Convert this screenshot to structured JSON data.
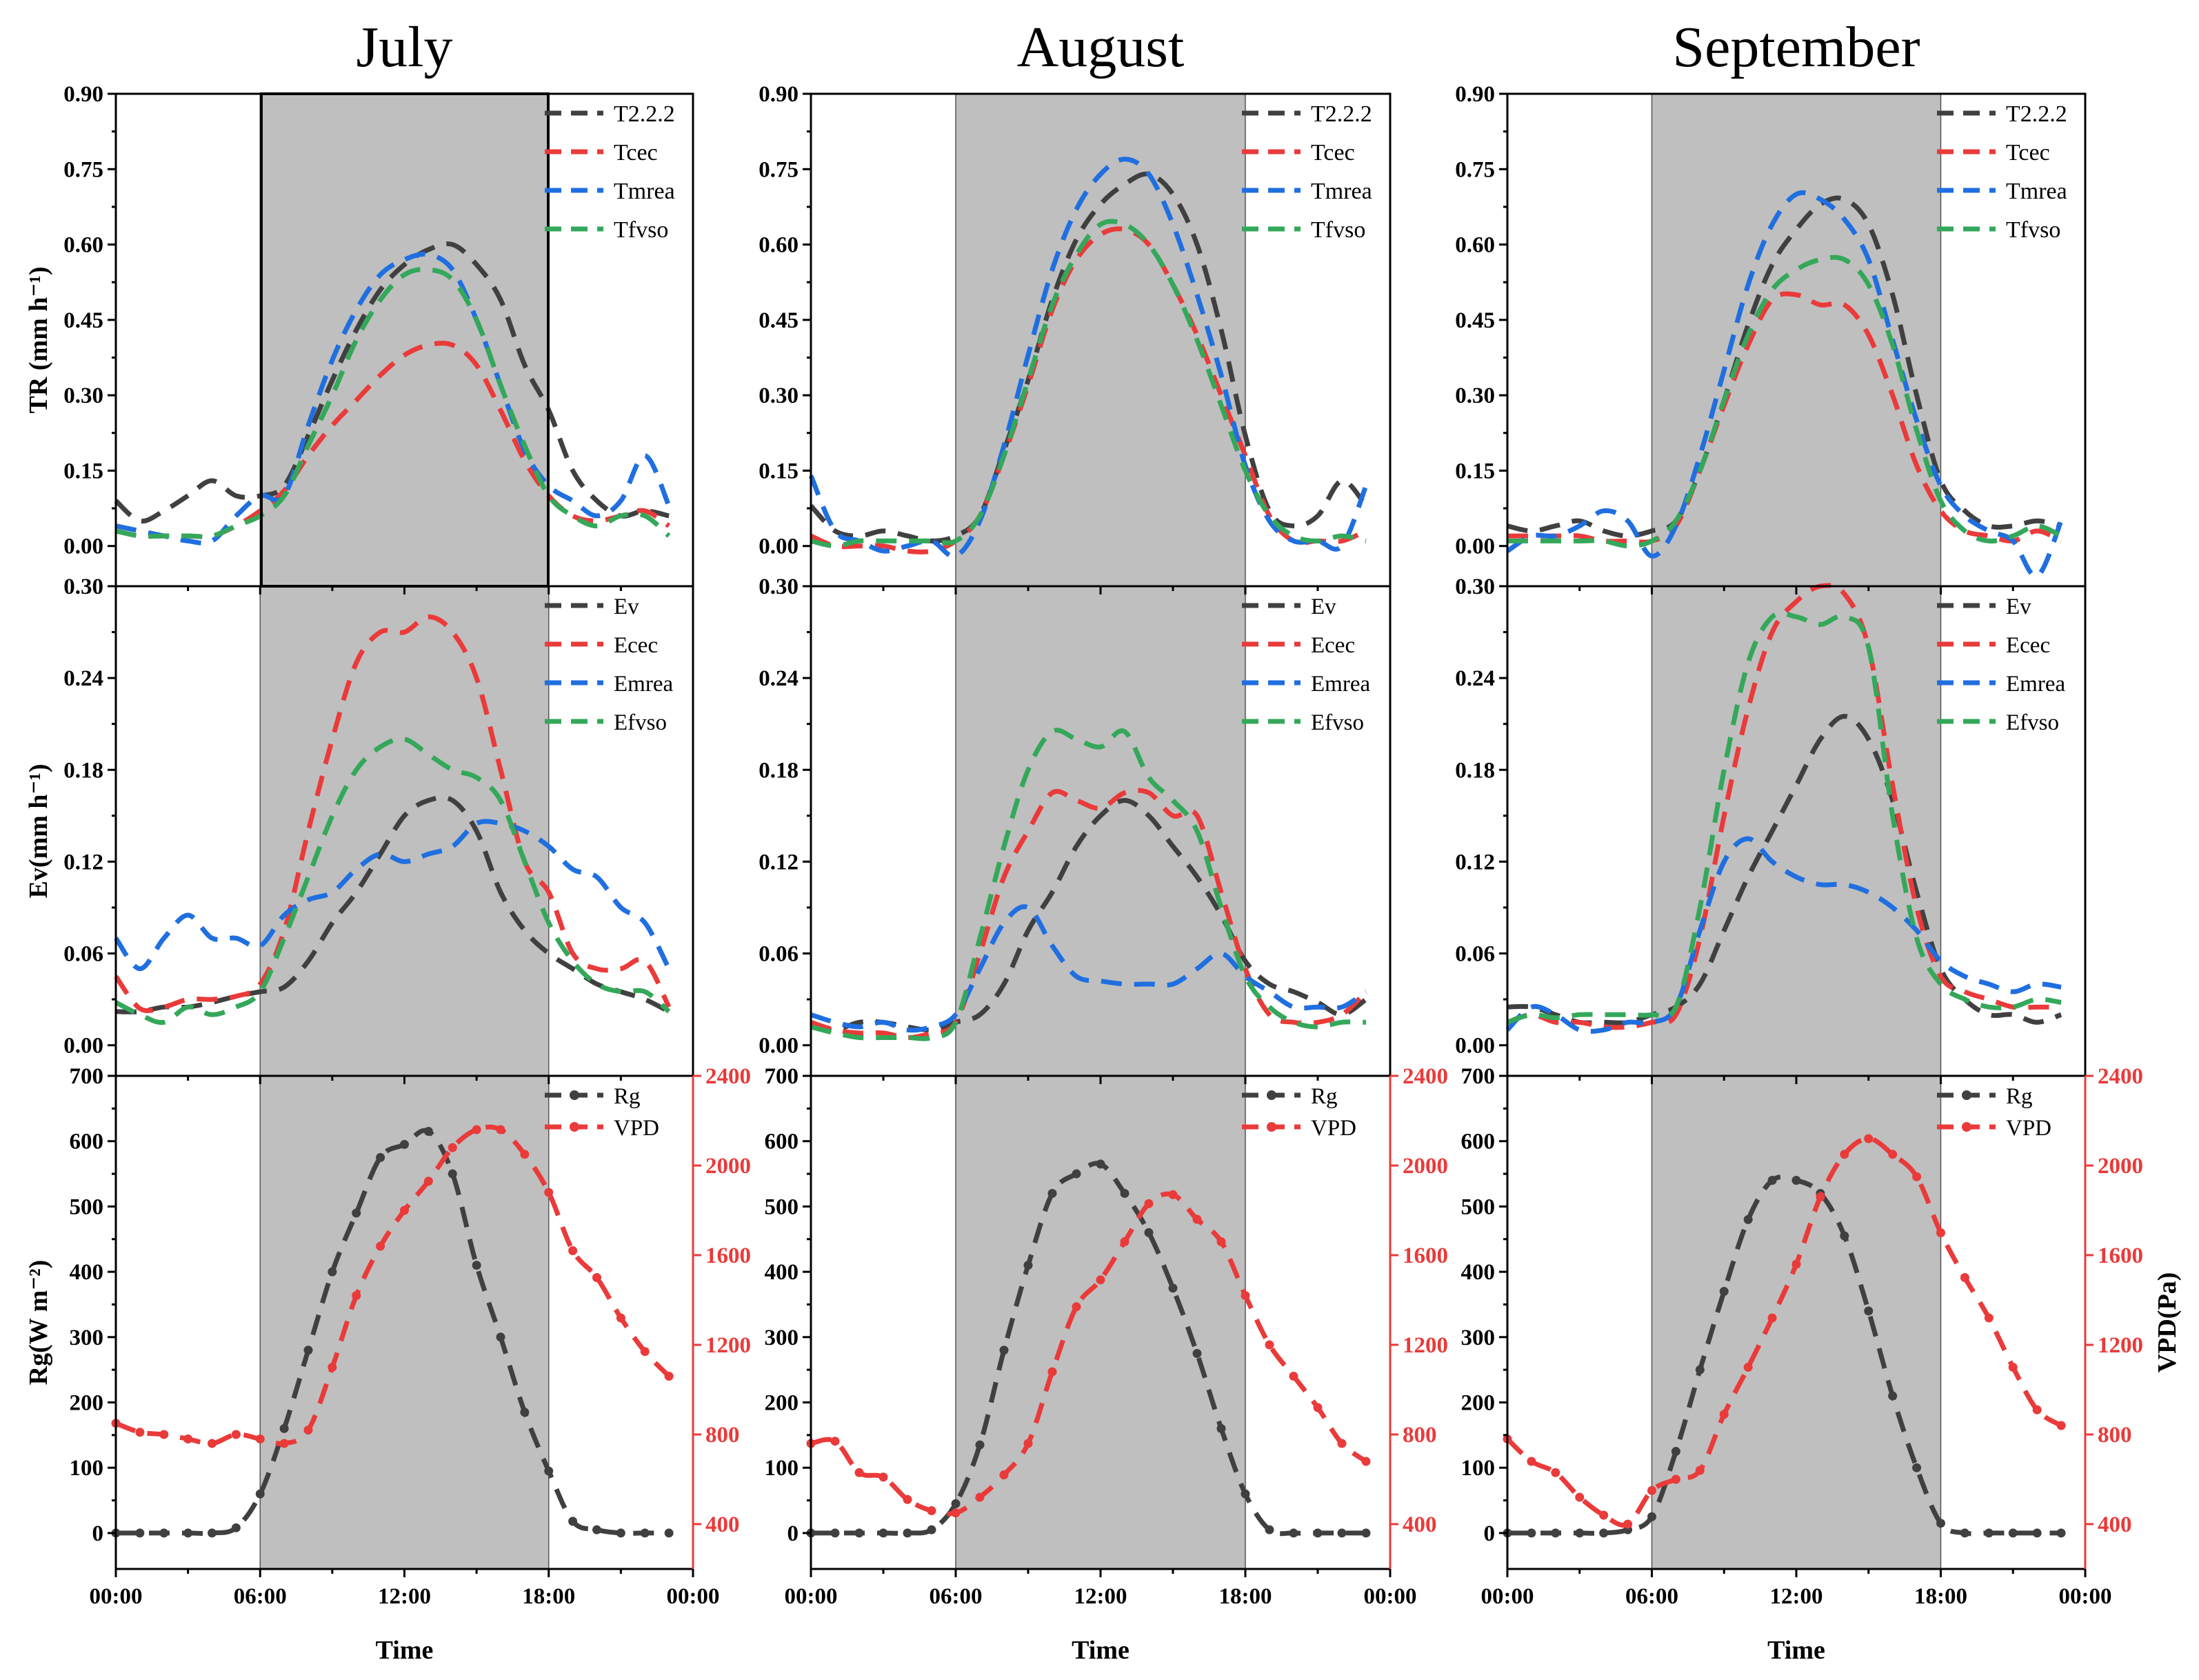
{
  "chart_data": {
    "type": "line",
    "columns": [
      "July",
      "August",
      "September"
    ],
    "xaxis": {
      "label": "Time",
      "ticks": [
        "00:00",
        "06:00",
        "12:00",
        "18:00",
        "00:00"
      ],
      "tick_hours": [
        0,
        6,
        12,
        18,
        24
      ],
      "range": [
        0,
        24
      ]
    },
    "shaded_hours": [
      6,
      18
    ],
    "rows": [
      {
        "key": "tr",
        "ylabel": "TR (mm h⁻¹)",
        "ylim": [
          -0.08,
          0.9
        ],
        "yticks": [
          0,
          0.15,
          0.3,
          0.45,
          0.6,
          0.75,
          0.9
        ],
        "yticklabels": [
          "0.00",
          "0.15",
          "0.30",
          "0.45",
          "0.60",
          "0.75",
          "0.90"
        ],
        "legend": [
          "T2.2.2",
          "Tcec",
          "Tmrea",
          "Tfvso"
        ]
      },
      {
        "key": "ev",
        "ylabel": "Ev(mm h⁻¹)",
        "ylim": [
          -0.02,
          0.3
        ],
        "yticks": [
          0,
          0.06,
          0.12,
          0.18,
          0.24,
          0.3
        ],
        "yticklabels": [
          "0.00",
          "0.06",
          "0.12",
          "0.18",
          "0.24",
          "0.30"
        ],
        "legend": [
          "Ev",
          "Ecec",
          "Emrea",
          "Efvso"
        ]
      },
      {
        "key": "met",
        "ylabel": "Rg(W m⁻²)",
        "y2label": "VPD(Pa)",
        "ylim": [
          -55,
          700
        ],
        "yticks": [
          0,
          100,
          200,
          300,
          400,
          500,
          600,
          700
        ],
        "yticklabels": [
          "0",
          "100",
          "200",
          "300",
          "400",
          "500",
          "600",
          "700"
        ],
        "y2lim": [
          200,
          2400
        ],
        "y2ticks": [
          400,
          800,
          1200,
          1600,
          2000,
          2400
        ],
        "y2ticklabels": [
          "400",
          "800",
          "1200",
          "1600",
          "2000",
          "2400"
        ],
        "legend": [
          "Rg",
          "VPD"
        ]
      }
    ],
    "series_colors": [
      "#404040",
      "#ea3a3a",
      "#1f6fe0",
      "#34a85a"
    ],
    "vpd_color": "#ea3a3a",
    "hours": [
      0,
      1,
      2,
      3,
      4,
      5,
      6,
      7,
      8,
      9,
      10,
      11,
      12,
      13,
      14,
      15,
      16,
      17,
      18,
      19,
      20,
      21,
      22,
      23
    ],
    "panels": [
      {
        "month": "July",
        "tr": [
          [
            0.09,
            0.05,
            0.07,
            0.1,
            0.13,
            0.1,
            0.1,
            0.12,
            0.22,
            0.33,
            0.43,
            0.51,
            0.56,
            0.59,
            0.6,
            0.56,
            0.49,
            0.36,
            0.27,
            0.15,
            0.09,
            0.06,
            0.07,
            0.06
          ],
          [
            0.03,
            0.02,
            0.02,
            0.02,
            0.02,
            0.04,
            0.07,
            0.11,
            0.18,
            0.24,
            0.29,
            0.34,
            0.38,
            0.4,
            0.4,
            0.36,
            0.27,
            0.17,
            0.1,
            0.06,
            0.05,
            0.06,
            0.07,
            0.04
          ],
          [
            0.04,
            0.03,
            0.02,
            0.01,
            0.01,
            0.06,
            0.1,
            0.1,
            0.24,
            0.37,
            0.47,
            0.54,
            0.57,
            0.58,
            0.55,
            0.45,
            0.32,
            0.19,
            0.12,
            0.09,
            0.06,
            0.09,
            0.18,
            0.08
          ],
          [
            0.03,
            0.02,
            0.02,
            0.02,
            0.02,
            0.04,
            0.06,
            0.1,
            0.2,
            0.3,
            0.41,
            0.49,
            0.54,
            0.55,
            0.53,
            0.45,
            0.32,
            0.2,
            0.1,
            0.06,
            0.04,
            0.06,
            0.06,
            0.02
          ]
        ],
        "ev": [
          [
            0.022,
            0.022,
            0.025,
            0.025,
            0.028,
            0.032,
            0.035,
            0.038,
            0.055,
            0.08,
            0.1,
            0.125,
            0.15,
            0.16,
            0.16,
            0.14,
            0.1,
            0.075,
            0.06,
            0.05,
            0.04,
            0.035,
            0.03,
            0.022
          ],
          [
            0.045,
            0.024,
            0.025,
            0.03,
            0.03,
            0.032,
            0.04,
            0.075,
            0.14,
            0.2,
            0.25,
            0.27,
            0.27,
            0.28,
            0.27,
            0.24,
            0.18,
            0.12,
            0.1,
            0.06,
            0.05,
            0.05,
            0.055,
            0.025
          ],
          [
            0.07,
            0.05,
            0.07,
            0.085,
            0.07,
            0.07,
            0.065,
            0.085,
            0.095,
            0.1,
            0.115,
            0.125,
            0.12,
            0.125,
            0.13,
            0.145,
            0.145,
            0.14,
            0.13,
            0.115,
            0.11,
            0.09,
            0.08,
            0.05
          ],
          [
            0.028,
            0.02,
            0.015,
            0.025,
            0.02,
            0.025,
            0.035,
            0.07,
            0.11,
            0.15,
            0.18,
            0.195,
            0.2,
            0.19,
            0.18,
            0.175,
            0.16,
            0.12,
            0.08,
            0.055,
            0.04,
            0.035,
            0.035,
            0.022
          ]
        ],
        "rg": [
          0,
          0,
          0,
          0,
          0,
          8,
          60,
          160,
          280,
          400,
          490,
          575,
          595,
          615,
          550,
          410,
          300,
          185,
          95,
          18,
          5,
          0,
          0,
          0
        ],
        "vpd": [
          850,
          810,
          800,
          780,
          760,
          800,
          780,
          760,
          820,
          1100,
          1420,
          1640,
          1800,
          1930,
          2080,
          2160,
          2160,
          2050,
          1880,
          1620,
          1500,
          1320,
          1170,
          1060
        ]
      },
      {
        "month": "August",
        "tr": [
          [
            0.08,
            0.03,
            0.02,
            0.03,
            0.02,
            0.01,
            0.02,
            0.06,
            0.19,
            0.33,
            0.49,
            0.61,
            0.68,
            0.72,
            0.74,
            0.7,
            0.6,
            0.43,
            0.22,
            0.07,
            0.04,
            0.06,
            0.13,
            0.08
          ],
          [
            0.02,
            0.0,
            0.0,
            0.0,
            -0.01,
            -0.01,
            0.01,
            0.06,
            0.18,
            0.32,
            0.47,
            0.57,
            0.62,
            0.63,
            0.6,
            0.52,
            0.42,
            0.3,
            0.18,
            0.06,
            0.01,
            0.01,
            0.01,
            0.03
          ],
          [
            0.14,
            0.03,
            0.01,
            -0.01,
            0.0,
            0.01,
            -0.02,
            0.05,
            0.2,
            0.38,
            0.55,
            0.67,
            0.74,
            0.77,
            0.74,
            0.64,
            0.5,
            0.34,
            0.16,
            0.05,
            0.01,
            0.01,
            0.0,
            0.12
          ],
          [
            0.01,
            0.0,
            0.01,
            0.01,
            0.01,
            0.01,
            0.01,
            0.06,
            0.18,
            0.33,
            0.48,
            0.58,
            0.64,
            0.64,
            0.6,
            0.52,
            0.41,
            0.28,
            0.15,
            0.06,
            0.02,
            0.01,
            0.02,
            0.01
          ]
        ],
        "ev": [
          [
            0.012,
            0.01,
            0.015,
            0.015,
            0.012,
            0.01,
            0.015,
            0.02,
            0.04,
            0.075,
            0.1,
            0.13,
            0.15,
            0.16,
            0.15,
            0.13,
            0.11,
            0.085,
            0.055,
            0.04,
            0.035,
            0.028,
            0.02,
            0.03
          ],
          [
            0.015,
            0.01,
            0.008,
            0.008,
            0.005,
            0.008,
            0.015,
            0.06,
            0.11,
            0.14,
            0.165,
            0.16,
            0.155,
            0.165,
            0.165,
            0.15,
            0.15,
            0.1,
            0.05,
            0.02,
            0.015,
            0.015,
            0.02,
            0.035
          ],
          [
            0.02,
            0.015,
            0.012,
            0.015,
            0.01,
            0.012,
            0.02,
            0.05,
            0.08,
            0.09,
            0.065,
            0.045,
            0.042,
            0.04,
            0.04,
            0.04,
            0.05,
            0.06,
            0.045,
            0.035,
            0.025,
            0.025,
            0.025,
            0.035
          ],
          [
            0.012,
            0.008,
            0.005,
            0.005,
            0.005,
            0.005,
            0.015,
            0.07,
            0.13,
            0.18,
            0.205,
            0.2,
            0.195,
            0.205,
            0.175,
            0.16,
            0.14,
            0.09,
            0.045,
            0.025,
            0.015,
            0.012,
            0.015,
            0.015
          ]
        ],
        "rg": [
          0,
          0,
          0,
          0,
          0,
          5,
          45,
          135,
          280,
          410,
          520,
          550,
          565,
          520,
          460,
          375,
          275,
          160,
          60,
          5,
          0,
          0,
          0,
          0
        ],
        "vpd": [
          760,
          770,
          630,
          610,
          510,
          460,
          450,
          520,
          620,
          760,
          1080,
          1370,
          1490,
          1660,
          1830,
          1870,
          1760,
          1660,
          1420,
          1200,
          1060,
          920,
          760,
          680
        ]
      },
      {
        "month": "September",
        "tr": [
          [
            0.04,
            0.03,
            0.04,
            0.05,
            0.03,
            0.02,
            0.03,
            0.05,
            0.15,
            0.29,
            0.44,
            0.56,
            0.63,
            0.68,
            0.69,
            0.64,
            0.5,
            0.3,
            0.13,
            0.07,
            0.04,
            0.04,
            0.05,
            0.04
          ],
          [
            0.02,
            0.02,
            0.02,
            0.02,
            0.01,
            0.01,
            0.01,
            0.04,
            0.15,
            0.28,
            0.4,
            0.49,
            0.5,
            0.48,
            0.48,
            0.42,
            0.3,
            0.16,
            0.07,
            0.03,
            0.02,
            0.01,
            0.03,
            0.01
          ],
          [
            -0.01,
            0.02,
            0.02,
            0.04,
            0.07,
            0.05,
            -0.02,
            0.04,
            0.18,
            0.35,
            0.52,
            0.64,
            0.7,
            0.69,
            0.65,
            0.57,
            0.41,
            0.25,
            0.12,
            0.06,
            0.03,
            0.01,
            -0.06,
            0.05
          ],
          [
            0.01,
            0.01,
            0.01,
            0.01,
            0.01,
            0.0,
            0.01,
            0.05,
            0.15,
            0.29,
            0.42,
            0.51,
            0.55,
            0.57,
            0.57,
            0.52,
            0.4,
            0.23,
            0.09,
            0.03,
            0.01,
            0.02,
            0.04,
            0.02
          ]
        ],
        "ev": [
          [
            0.025,
            0.025,
            0.02,
            0.015,
            0.015,
            0.015,
            0.02,
            0.025,
            0.04,
            0.075,
            0.11,
            0.14,
            0.17,
            0.2,
            0.215,
            0.2,
            0.16,
            0.1,
            0.05,
            0.03,
            0.02,
            0.02,
            0.015,
            0.02
          ],
          [
            0.015,
            0.02,
            0.015,
            0.015,
            0.012,
            0.012,
            0.015,
            0.02,
            0.07,
            0.15,
            0.22,
            0.27,
            0.29,
            0.3,
            0.295,
            0.26,
            0.17,
            0.09,
            0.045,
            0.035,
            0.03,
            0.025,
            0.025,
            0.025
          ],
          [
            0.01,
            0.025,
            0.02,
            0.01,
            0.01,
            0.015,
            0.015,
            0.025,
            0.075,
            0.12,
            0.135,
            0.12,
            0.11,
            0.105,
            0.105,
            0.1,
            0.09,
            0.075,
            0.055,
            0.045,
            0.04,
            0.035,
            0.04,
            0.038
          ],
          [
            0.015,
            0.02,
            0.018,
            0.02,
            0.02,
            0.02,
            0.02,
            0.025,
            0.09,
            0.18,
            0.25,
            0.28,
            0.28,
            0.275,
            0.28,
            0.26,
            0.15,
            0.07,
            0.04,
            0.03,
            0.025,
            0.025,
            0.03,
            0.028
          ]
        ],
        "rg": [
          0,
          0,
          0,
          0,
          0,
          5,
          25,
          125,
          250,
          370,
          480,
          540,
          540,
          520,
          455,
          340,
          210,
          100,
          15,
          0,
          0,
          0,
          0,
          0
        ],
        "vpd": [
          780,
          680,
          630,
          520,
          440,
          400,
          550,
          600,
          640,
          890,
          1100,
          1320,
          1560,
          1860,
          2050,
          2120,
          2050,
          1950,
          1700,
          1500,
          1320,
          1100,
          910,
          840
        ]
      }
    ]
  }
}
